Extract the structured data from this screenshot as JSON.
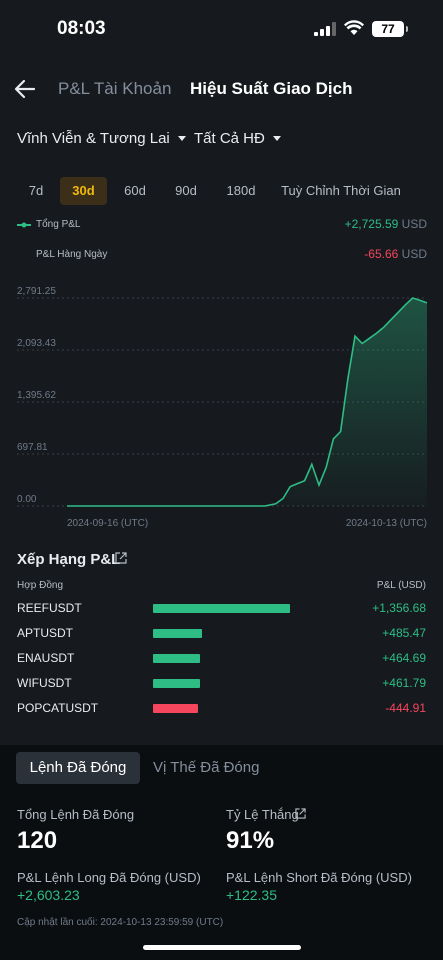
{
  "status_bar": {
    "time": "08:03",
    "battery": "77"
  },
  "header": {
    "tab_account": "P&L Tài Khoản",
    "tab_trading": "Hiệu Suất Giao Dịch"
  },
  "filters": {
    "market": "Vĩnh Viễn & Tương Lai",
    "contract": "Tất Cả HĐ"
  },
  "periods": [
    "7d",
    "30d",
    "60d",
    "90d",
    "180d",
    "Tuỳ Chỉnh Thời Gian"
  ],
  "active_period": "30d",
  "legend": {
    "total_label": "Tổng P&L",
    "total_value": "+2,725.59",
    "daily_label": "P&L Hàng Ngày",
    "daily_value": "-65.66",
    "unit": "USD"
  },
  "chart_data": {
    "type": "area",
    "y_ticks": [
      "2,791.25",
      "2,093.43",
      "1,395.62",
      "697.81",
      "0.00"
    ],
    "ylim": [
      0,
      2791.25
    ],
    "x_labels": [
      "2024-09-16 (UTC)",
      "2024-10-13 (UTC)"
    ],
    "grid": true,
    "x": [
      0,
      0.1,
      0.2,
      0.3,
      0.4,
      0.5,
      0.52,
      0.55,
      0.58,
      0.6,
      0.62,
      0.64,
      0.66,
      0.68,
      0.7,
      0.72,
      0.74,
      0.76,
      0.78,
      0.8,
      0.82,
      0.84,
      0.86,
      0.88,
      0.9,
      0.92,
      0.94,
      0.96,
      0.98,
      1.0
    ],
    "y": [
      0,
      0,
      0,
      0,
      0,
      0,
      0,
      0,
      30,
      100,
      260,
      300,
      340,
      560,
      280,
      520,
      900,
      1000,
      1700,
      2280,
      2180,
      2250,
      2320,
      2400,
      2500,
      2600,
      2700,
      2791,
      2760,
      2725.59
    ],
    "color": "#2ebd85"
  },
  "ranking": {
    "title": "Xếp Hạng P&L",
    "col_contract": "Hợp Đồng",
    "col_pnl": "P&L (USD)",
    "rows": [
      {
        "symbol": "REEFUSDT",
        "value": "+1,356.68",
        "amount": 1356.68
      },
      {
        "symbol": "APTUSDT",
        "value": "+485.47",
        "amount": 485.47
      },
      {
        "symbol": "ENAUSDT",
        "value": "+464.69",
        "amount": 464.69
      },
      {
        "symbol": "WIFUSDT",
        "value": "+461.79",
        "amount": 461.79
      },
      {
        "symbol": "POPCATUSDT",
        "value": "-444.91",
        "amount": -444.91
      }
    ]
  },
  "closed": {
    "seg_orders": "Lệnh Đã Đóng",
    "seg_positions": "Vị Thế Đã Đóng",
    "total_label": "Tổng Lệnh Đã Đóng",
    "total_value": "120",
    "winrate_label": "Tỷ Lệ Thắng",
    "winrate_value": "91%",
    "long_label": "P&L Lệnh Long Đã Đóng (USD)",
    "long_value": "+2,603.23",
    "short_label": "P&L Lệnh Short Đã Đóng (USD)",
    "short_value": "+122.35",
    "updated": "Cập nhật lần cuối: 2024-10-13 23:59:59 (UTC)"
  },
  "colors": {
    "green": "#2ebd85",
    "red": "#f6465d",
    "accent": "#f0b90b"
  }
}
